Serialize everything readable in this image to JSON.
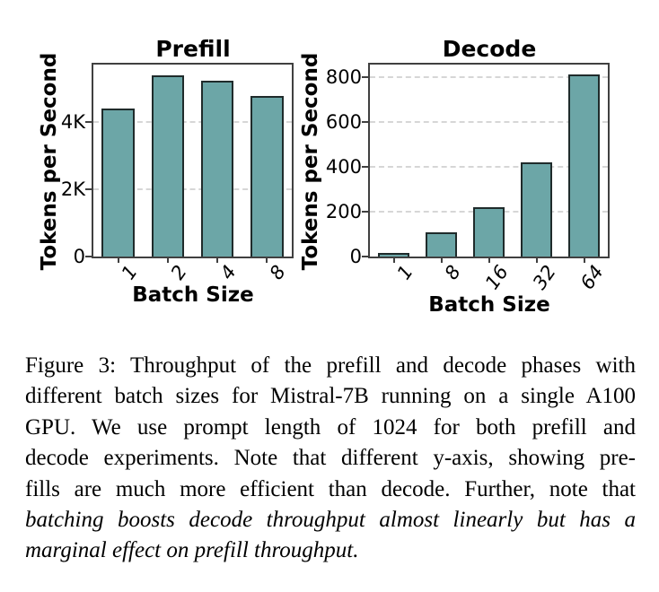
{
  "figure_caption": {
    "lines": [
      {
        "text": "Figure 3: Throughput of the prefill and decode phases with",
        "italic": false
      },
      {
        "text": "different batch sizes for Mistral-7B running on a single A100",
        "italic": false
      },
      {
        "text": "GPU. We use prompt length of 1024 for both prefill and",
        "italic": false
      },
      {
        "text": "decode experiments. Note that different y-axis, showing pre-",
        "italic": false
      },
      {
        "text": "fills are much more efficient than decode. Further, note that",
        "italic": false
      },
      {
        "text": "batching boosts decode throughput almost linearly but has a",
        "italic": true
      },
      {
        "text": "marginal effect on prefill throughput.",
        "italic": true
      }
    ]
  },
  "chart_data": [
    {
      "type": "bar",
      "title": "Prefill",
      "xlabel": "Batch Size",
      "ylabel": "Tokens per Second",
      "categories": [
        "1",
        "2",
        "4",
        "8"
      ],
      "values": [
        4400,
        5380,
        5220,
        4770
      ],
      "ylim": [
        0,
        5700
      ],
      "yticks": [
        {
          "value": 0,
          "label": "0"
        },
        {
          "value": 2000,
          "label": "2K"
        },
        {
          "value": 4000,
          "label": "4K"
        }
      ],
      "grid": "horizontal-dashed",
      "legend": "none",
      "bar_color": "#6CA6A7",
      "bar_edge_color": "#1F2B2B"
    },
    {
      "type": "bar",
      "title": "Decode",
      "xlabel": "Batch Size",
      "ylabel": "Tokens per Second",
      "categories": [
        "1",
        "8",
        "16",
        "32",
        "64"
      ],
      "values": [
        15,
        108,
        218,
        418,
        810
      ],
      "ylim": [
        0,
        855
      ],
      "yticks": [
        {
          "value": 0,
          "label": "0"
        },
        {
          "value": 200,
          "label": "200"
        },
        {
          "value": 400,
          "label": "400"
        },
        {
          "value": 600,
          "label": "600"
        },
        {
          "value": 800,
          "label": "800"
        }
      ],
      "grid": "horizontal-dashed",
      "legend": "none",
      "bar_color": "#6CA6A7",
      "bar_edge_color": "#1F2B2B"
    }
  ],
  "colors": {
    "background": "#FFFFFF",
    "bar_fill": "#6CA6A7",
    "bar_edge": "#1F2B2B",
    "axis": "#404040",
    "gridline": "#D6D6D6",
    "text": "#000000"
  }
}
